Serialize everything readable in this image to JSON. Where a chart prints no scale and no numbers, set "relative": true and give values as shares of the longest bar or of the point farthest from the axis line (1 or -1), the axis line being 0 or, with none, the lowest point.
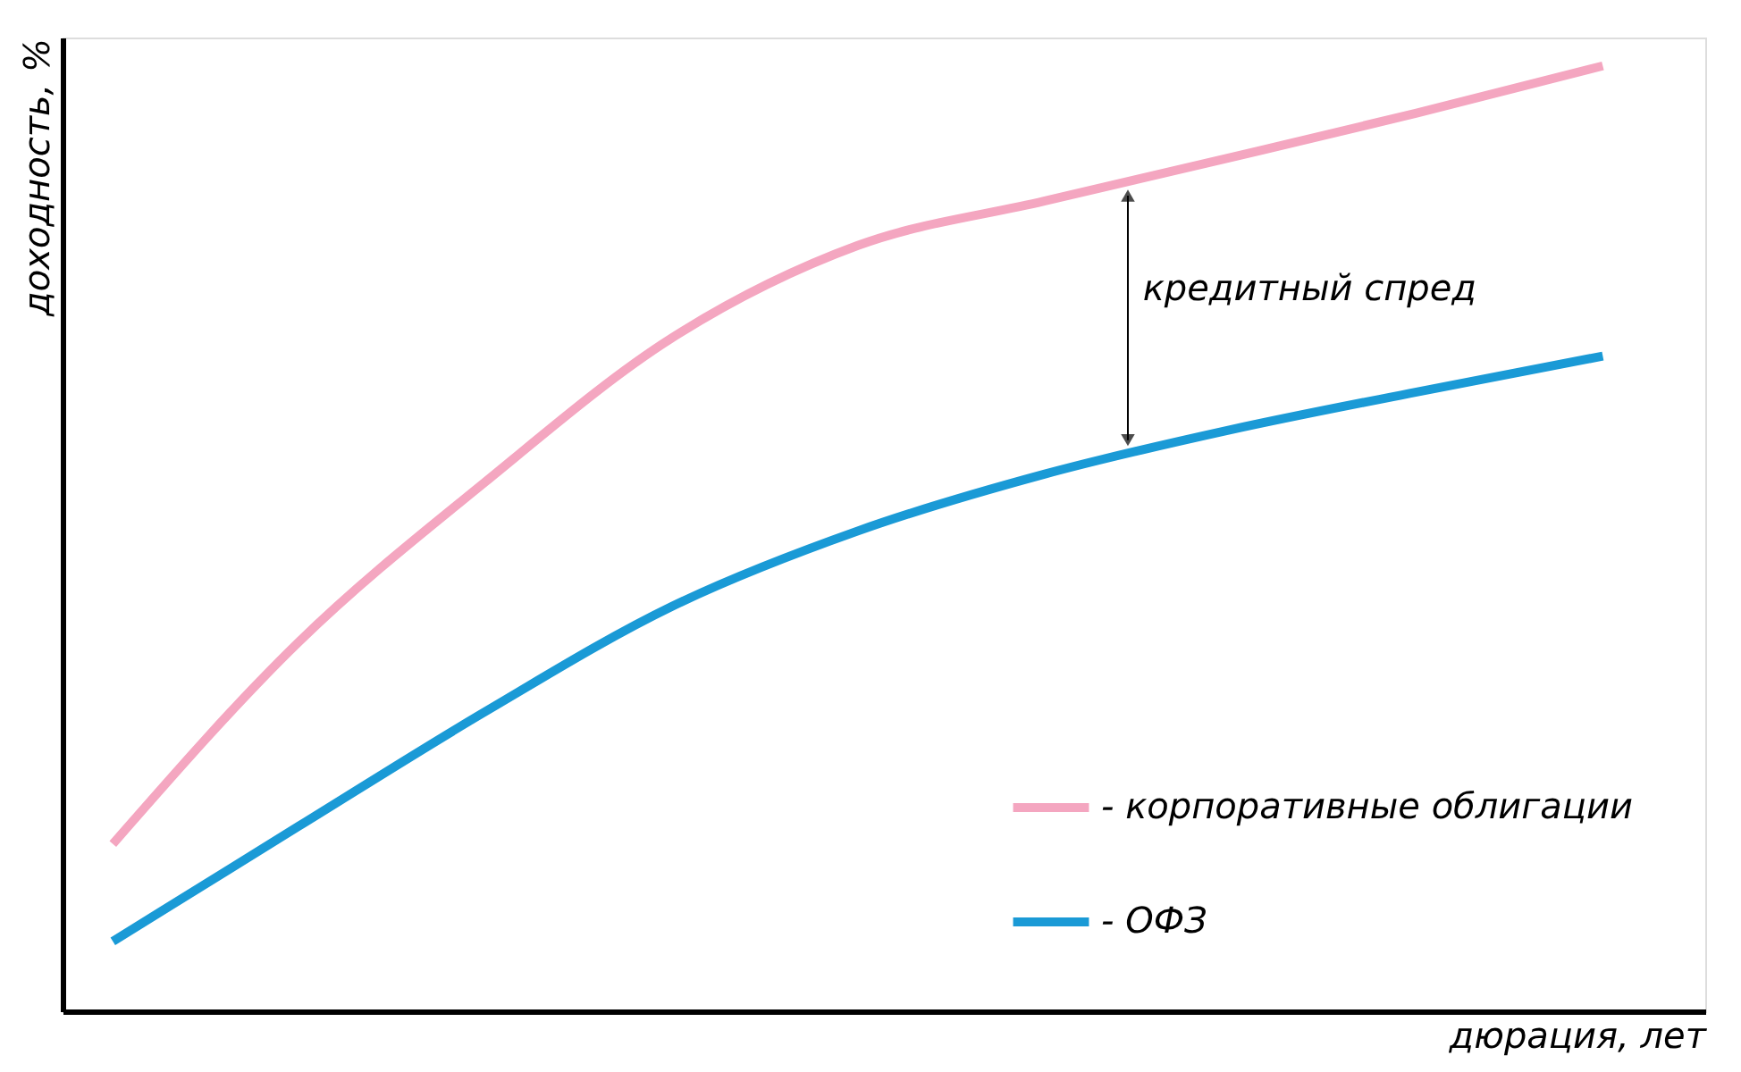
{
  "chart_data": {
    "type": "line",
    "relative": true,
    "xlabel": "дюрация, лет",
    "ylabel": "доходность, %",
    "categories": [
      null,
      null,
      null,
      null,
      null,
      null,
      null,
      null,
      null
    ],
    "series": [
      {
        "name": "- корпоративные облигации",
        "color": "#f4a6c0",
        "values": [
          0.177,
          0.391,
          0.56,
          0.712,
          0.81,
          0.857,
          0.903,
          0.95,
          1.0
        ]
      },
      {
        "name": "- ОФЗ",
        "color": "#1a9ad6",
        "values": [
          0.074,
          0.196,
          0.317,
          0.428,
          0.508,
          0.568,
          0.615,
          0.655,
          0.693
        ]
      }
    ],
    "annotations": [
      "кредитный спред"
    ],
    "legend": "bottom right",
    "grid": false,
    "marker": "none",
    "line_style": "solid"
  }
}
